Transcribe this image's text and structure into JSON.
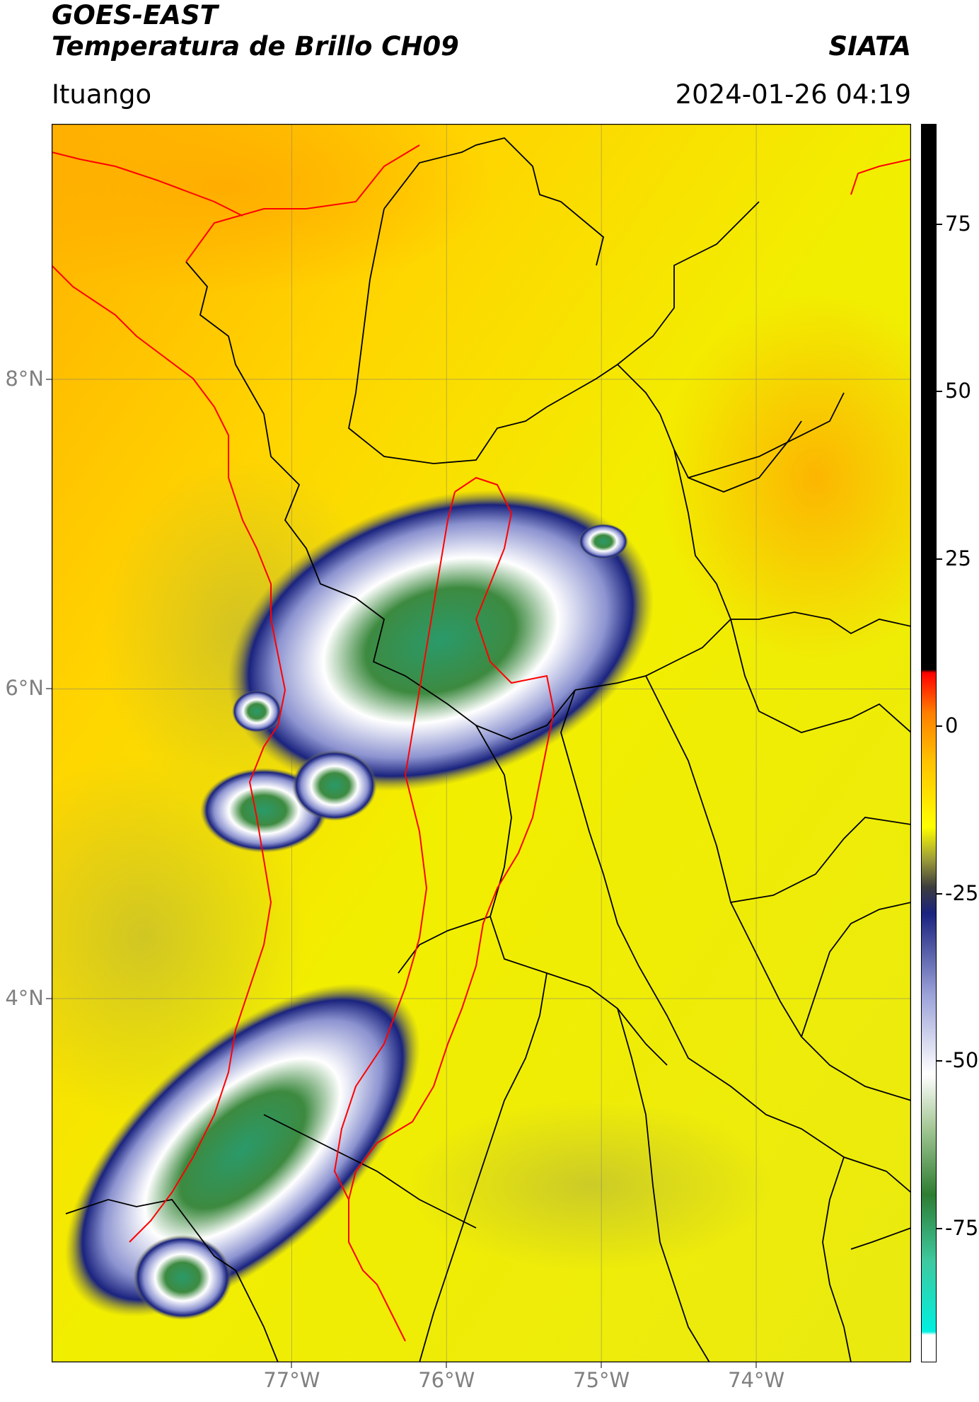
{
  "header": {
    "satellite": "GOES-EAST",
    "product": "Temperatura de Brillo CH09",
    "agency": "SIATA",
    "location": "Ituango",
    "datetime": "2024-01-26 04:19"
  },
  "map": {
    "lon_range": [
      -78.55,
      -73.0
    ],
    "lat_range": [
      1.65,
      9.65
    ],
    "lon_ticks": [
      {
        "value": -77,
        "label": "77°W"
      },
      {
        "value": -76,
        "label": "76°W"
      },
      {
        "value": -75,
        "label": "75°W"
      },
      {
        "value": -74,
        "label": "74°W"
      }
    ],
    "lat_ticks": [
      {
        "value": 8,
        "label": "8°N"
      },
      {
        "value": 6,
        "label": "6°N"
      },
      {
        "value": 4,
        "label": "4°N"
      }
    ],
    "gridlines": true,
    "boundary_colors": {
      "departments": "#000000",
      "highlight": "#ff0000"
    }
  },
  "colorbar": {
    "range": [
      -95,
      90
    ],
    "ticks": [
      {
        "value": 75,
        "label": "75"
      },
      {
        "value": 50,
        "label": "50"
      },
      {
        "value": 25,
        "label": "25"
      },
      {
        "value": 0,
        "label": "0"
      },
      {
        "value": -25,
        "label": "-25"
      },
      {
        "value": -50,
        "label": "-50"
      },
      {
        "value": -75,
        "label": "-75"
      }
    ],
    "stops": [
      {
        "value": -95,
        "color": "#ffffff"
      },
      {
        "value": -91,
        "color": "#ffffff"
      },
      {
        "value": -90.5,
        "color": "#00f0e0"
      },
      {
        "value": -80,
        "color": "#3ec9a0"
      },
      {
        "value": -70,
        "color": "#2e7d32"
      },
      {
        "value": -60,
        "color": "#a5c896"
      },
      {
        "value": -52,
        "color": "#ffffff"
      },
      {
        "value": -40,
        "color": "#9aa1d8"
      },
      {
        "value": -28,
        "color": "#1a237e"
      },
      {
        "value": -24,
        "color": "#3d3d3d"
      },
      {
        "value": -20,
        "color": "#9a9a3a"
      },
      {
        "value": -15,
        "color": "#ffff00"
      },
      {
        "value": -5,
        "color": "#ffc000"
      },
      {
        "value": 2,
        "color": "#ff7f00"
      },
      {
        "value": 8,
        "color": "#ff0000"
      },
      {
        "value": 8.5,
        "color": "#000000"
      },
      {
        "value": 90,
        "color": "#000000"
      }
    ]
  }
}
